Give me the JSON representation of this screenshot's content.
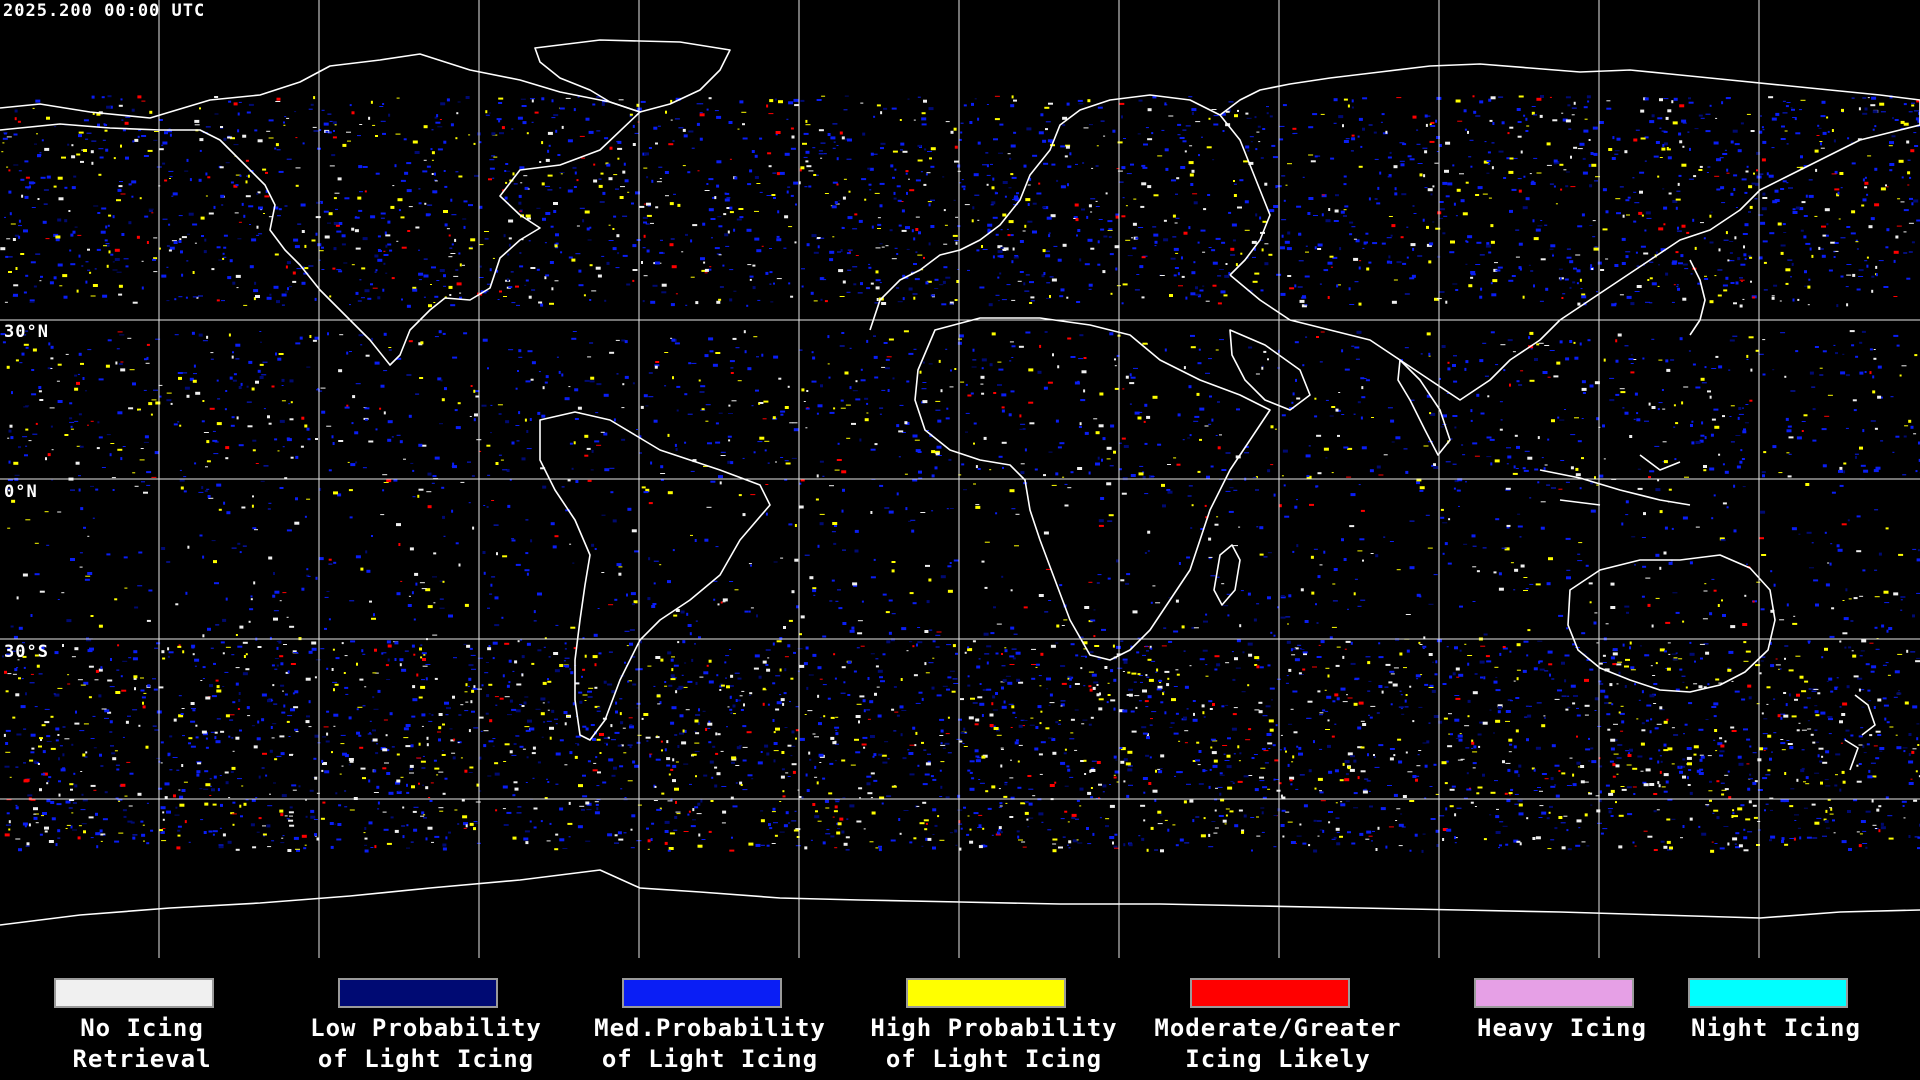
{
  "timestamp": "2025.200 00:00 UTC",
  "latitude_labels": [
    "30°N",
    "0°N",
    "30°S"
  ],
  "colors": {
    "background": "#000000",
    "coastline": "#ffffff",
    "gridline": "#ffffff"
  },
  "legend": [
    {
      "line1": "No Icing",
      "line2": "Retrieval",
      "color": "#f0f0f0"
    },
    {
      "line1": "Low Probability",
      "line2": "of Light Icing",
      "color": "#000a73"
    },
    {
      "line1": "Med.Probability",
      "line2": "of Light Icing",
      "color": "#0a1ef5"
    },
    {
      "line1": "High Probability",
      "line2": "of Light Icing",
      "color": "#ffff00"
    },
    {
      "line1": "Moderate/Greater",
      "line2": "Icing Likely",
      "color": "#ff0000"
    },
    {
      "line1": "Heavy Icing",
      "line2": "",
      "color": "#e6a0e6"
    },
    {
      "line1": "Night Icing",
      "line2": "",
      "color": "#00ffff"
    }
  ]
}
